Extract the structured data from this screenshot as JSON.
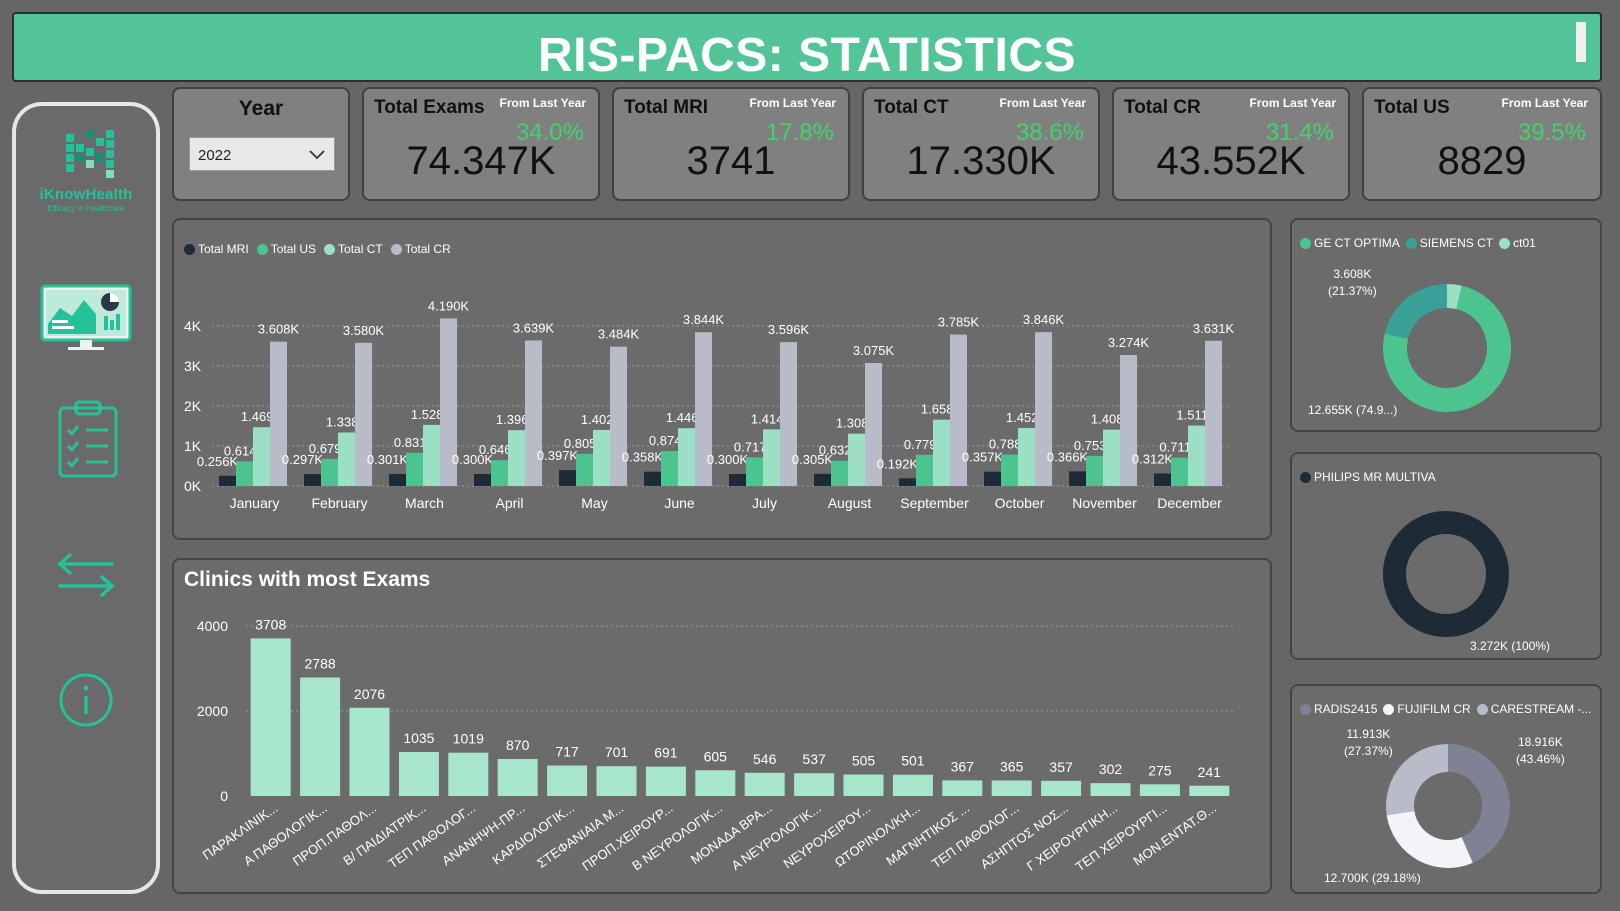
{
  "title": "RIS-PACS: STATISTICS",
  "logo": {
    "name": "iKnowHealth",
    "tagline": "Efficacy in Healthcare"
  },
  "year_filter": {
    "label": "Year",
    "value": "2022"
  },
  "kpis": [
    {
      "title": "Total Exams",
      "sub": "From Last Year",
      "pct": "34.0%",
      "value": "74.347K"
    },
    {
      "title": "Total MRI",
      "sub": "From Last Year",
      "pct": "17.8%",
      "value": "3741"
    },
    {
      "title": "Total CT",
      "sub": "From Last Year",
      "pct": "38.6%",
      "value": "17.330K"
    },
    {
      "title": "Total CR",
      "sub": "From Last Year",
      "pct": "31.4%",
      "value": "43.552K"
    },
    {
      "title": "Total US",
      "sub": "From Last Year",
      "pct": "39.5%",
      "value": "8829"
    }
  ],
  "colors": {
    "banner": "#52c497",
    "mri": "#1e2b36",
    "us": "#4cc48f",
    "ct": "#9be0c4",
    "cr": "#b8bcc8",
    "clinic_bar": "#a8e6cc",
    "accent": "#23c29a"
  },
  "icons": [
    "logo-icon",
    "dashboard-monitor-icon",
    "clipboard-checklist-icon",
    "swap-arrows-icon",
    "info-icon"
  ],
  "chart_data": [
    {
      "type": "bar",
      "title": "",
      "legend": [
        "Total MRI",
        "Total US",
        "Total CT",
        "Total CR"
      ],
      "legend_position": "top-left",
      "categories": [
        "January",
        "February",
        "March",
        "April",
        "May",
        "June",
        "July",
        "August",
        "September",
        "October",
        "November",
        "December"
      ],
      "y_ticks": [
        "0K",
        "1K",
        "2K",
        "3K",
        "4K"
      ],
      "ylim": [
        0,
        4400
      ],
      "grid": true,
      "series": [
        {
          "name": "Total MRI",
          "values": [
            256,
            297,
            301,
            300,
            397,
            358,
            300,
            305,
            192,
            357,
            366,
            312
          ],
          "labels": [
            "0.256K",
            "0.297K",
            "0.301K",
            "0.300K",
            "0.397K",
            "0.358K",
            "0.300K",
            "0.305K",
            "0.192K",
            "0.357K",
            "0.366K",
            "0.312K"
          ]
        },
        {
          "name": "Total US",
          "values": [
            614,
            679,
            831,
            646,
            805,
            874,
            717,
            632,
            779,
            788,
            753,
            711
          ],
          "labels": [
            "0.614K",
            "0.679K",
            "0.831K",
            "0.646K",
            "0.805K",
            "0.874K",
            "0.717K",
            "0.632K",
            "0.779K",
            "0.788K",
            "0.753K",
            "0.711K"
          ]
        },
        {
          "name": "Total CT",
          "values": [
            1469,
            1338,
            1528,
            1396,
            1402,
            1446,
            1414,
            1308,
            1658,
            1452,
            1408,
            1511
          ],
          "labels": [
            "1.469K",
            "1.338K",
            "1.528K",
            "1.396K",
            "1.402K",
            "1.446K",
            "1.414K",
            "1.308K",
            "1.658K",
            "1.452K",
            "1.408K",
            "1.511K"
          ]
        },
        {
          "name": "Total CR",
          "values": [
            3608,
            3580,
            4190,
            3639,
            3484,
            3844,
            3596,
            3075,
            3785,
            3846,
            3274,
            3631
          ],
          "labels": [
            "3.608K",
            "3.580K",
            "4.190K",
            "3.639K",
            "3.484K",
            "3.844K",
            "3.596K",
            "3.075K",
            "3.785K",
            "3.846K",
            "3.274K",
            "3.631K"
          ]
        }
      ]
    },
    {
      "type": "bar",
      "title": "Clinics with most Exams",
      "categories": [
        "ΠΑΡΑΚΛΙΝΙΚ...",
        "Α ΠΑΘΟΛΟΓΙΚ...",
        "ΠΡΟΠ.ΠΑΘΟΛ...",
        "Β/ ΠΑΙΔΙΑΤΡΙΚ...",
        "ΤΕΠ ΠΑΘΟΛΟΓ...",
        "ΑΝΑΝΗΨΗ-ΠΡ...",
        "ΚΑΡΔΙΟΛΟΓΙΚ...",
        "ΣΤΕΦΑΝΙΑΙΑ Μ...",
        "ΠΡΟΠ.ΧΕΙΡΟΥΡ...",
        "Β ΝΕΥΡΟΛΟΓΙΚ...",
        "ΜΟΝΑΔΑ ΒΡΑ...",
        "Α ΝΕΥΡΟΛΟΓΙΚ...",
        "ΝΕΥΡΟΧΕΙΡΟΥ...",
        "ΩΤΟΡΙΝΟΛ/ΚΗ...",
        "ΜΑΓΝΗΤΙΚΟΣ ...",
        "ΤΕΠ ΠΑΘΟΛΟΓ...",
        "ΑΣΗΠΤΟΣ ΝΟΣ...",
        "Γ ΧΕΙΡΟΥΡΓΙΚΗ...",
        "ΤΕΠ ΧΕΙΡΟΥΡΓΙ...",
        "ΜΟΝ.ΕΝΤΑΤ.Θ..."
      ],
      "values": [
        3708,
        2788,
        2076,
        1035,
        1019,
        870,
        717,
        701,
        691,
        605,
        546,
        537,
        505,
        501,
        367,
        365,
        357,
        302,
        275,
        241
      ],
      "y_ticks": [
        "0",
        "2000",
        "4000"
      ],
      "ylim": [
        0,
        4000
      ],
      "grid": true
    },
    {
      "type": "pie",
      "legend": [
        "GE CT OPTIMA",
        "SIEMENS CT",
        "ct01"
      ],
      "slices": [
        {
          "name": "GE CT OPTIMA",
          "value": 12655,
          "pct": 74.9,
          "color": "#4cc48f",
          "label": "12.655K (74.9...)"
        },
        {
          "name": "SIEMENS CT",
          "value": 3608,
          "pct": 21.37,
          "color": "#3aa199",
          "label": "3.608K",
          "label2": "(21.37%)"
        },
        {
          "name": "ct01",
          "value": 630,
          "pct": 3.73,
          "color": "#9be0c4"
        }
      ]
    },
    {
      "type": "pie",
      "legend": [
        "PHILIPS MR MULTIVA"
      ],
      "slices": [
        {
          "name": "PHILIPS MR MULTIVA",
          "value": 3272,
          "pct": 100,
          "color": "#1e2b36",
          "label": "3.272K (100%)"
        }
      ]
    },
    {
      "type": "pie",
      "legend": [
        "RADIS2415",
        "FUJIFILM CR",
        "CARESTREAM -..."
      ],
      "slices": [
        {
          "name": "RADIS2415",
          "value": 18916,
          "pct": 43.46,
          "color": "#7e8294",
          "label": "18.916K",
          "label2": "(43.46%)"
        },
        {
          "name": "FUJIFILM CR",
          "value": 12700,
          "pct": 29.18,
          "color": "#f3f4f8",
          "label": "12.700K (29.18%)"
        },
        {
          "name": "CARESTREAM -...",
          "value": 11913,
          "pct": 27.37,
          "color": "#b8bcc8",
          "label": "11.913K",
          "label2": "(27.37%)"
        }
      ]
    }
  ]
}
